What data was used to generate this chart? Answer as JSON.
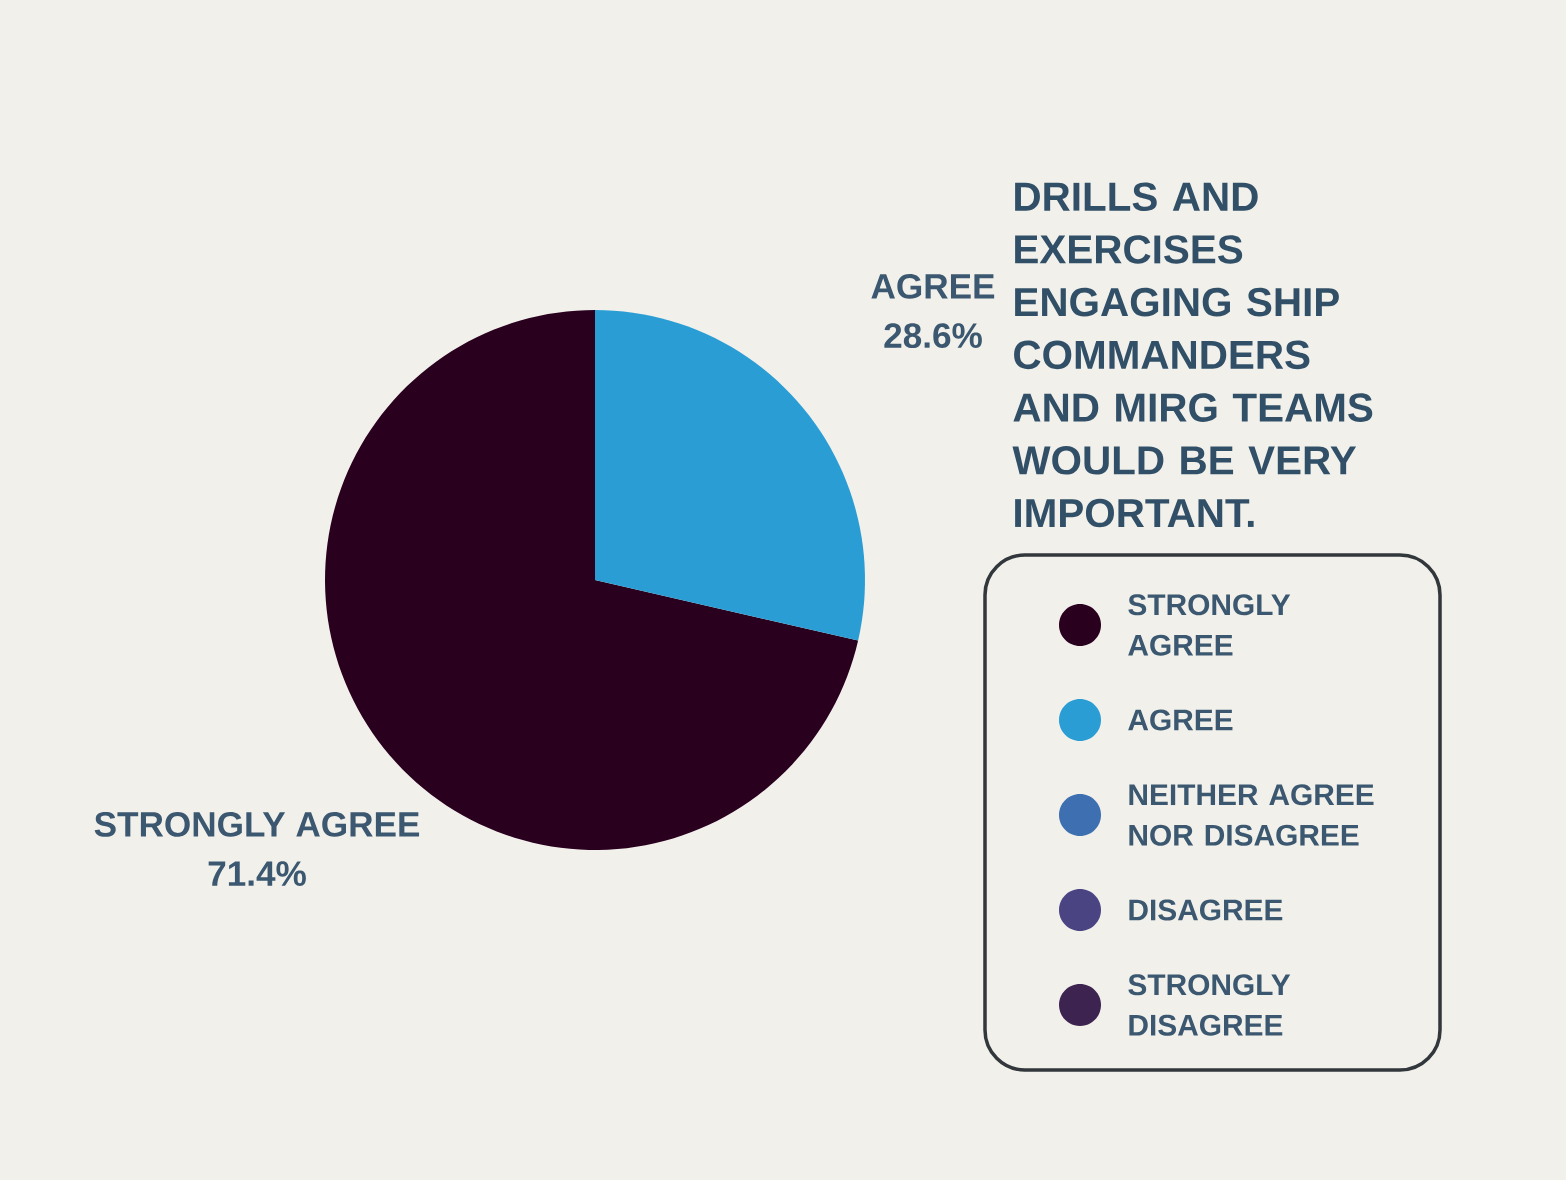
{
  "chart_data": {
    "type": "pie",
    "title": "DRILLS AND EXERCISES ENGAGING SHIP COMMANDERS AND MIRG TEAMS WOULD BE VERY IMPORTANT.",
    "categories": [
      "STRONGLY AGREE",
      "AGREE",
      "NEITHER AGREE NOR DISAGREE",
      "DISAGREE",
      "STRONGLY DISAGREE"
    ],
    "values": [
      71.4,
      28.6,
      0,
      0,
      0
    ],
    "value_labels": [
      "71.4%",
      "28.6%",
      null,
      null,
      null
    ],
    "colors": [
      "#2a001f",
      "#2a9ed4",
      "#3d6fb1",
      "#4a4582",
      "#3d2350"
    ],
    "legend": "right"
  }
}
